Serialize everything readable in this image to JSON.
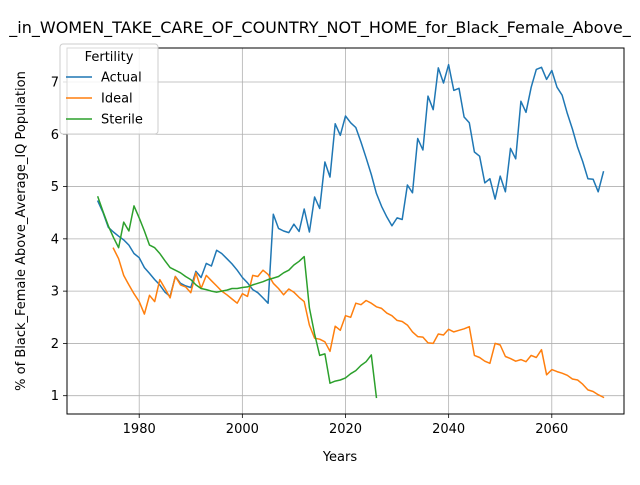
{
  "chart_data": {
    "type": "line",
    "title": "_in_WOMEN_TAKE_CARE_OF_COUNTRY_NOT_HOME_for_Black_Female_Above_",
    "xlabel": "Years",
    "ylabel": "% of Black_Female Above_Average_IQ Population",
    "xlim": [
      1966,
      2074
    ],
    "ylim": [
      0.65,
      7.65
    ],
    "xticks": [
      1980,
      2000,
      2020,
      2040,
      2060
    ],
    "yticks": [
      1,
      2,
      3,
      4,
      5,
      6,
      7
    ],
    "grid": true,
    "legend": {
      "title": "Fertility",
      "position": "upper-left"
    },
    "series": [
      {
        "name": "Actual",
        "color": "#1f77b4",
        "points": [
          [
            1972,
            4.72
          ],
          [
            1973,
            4.5
          ],
          [
            1974,
            4.22
          ],
          [
            1975,
            4.13
          ],
          [
            1976,
            4.05
          ],
          [
            1977,
            3.98
          ],
          [
            1978,
            3.88
          ],
          [
            1979,
            3.72
          ],
          [
            1980,
            3.64
          ],
          [
            1981,
            3.45
          ],
          [
            1982,
            3.34
          ],
          [
            1983,
            3.22
          ],
          [
            1984,
            3.12
          ],
          [
            1985,
            2.98
          ],
          [
            1986,
            2.9
          ],
          [
            1987,
            3.28
          ],
          [
            1988,
            3.15
          ],
          [
            1989,
            3.1
          ],
          [
            1990,
            3.07
          ],
          [
            1991,
            3.38
          ],
          [
            1992,
            3.26
          ],
          [
            1993,
            3.53
          ],
          [
            1994,
            3.48
          ],
          [
            1995,
            3.78
          ],
          [
            1996,
            3.72
          ],
          [
            1997,
            3.62
          ],
          [
            1998,
            3.52
          ],
          [
            1999,
            3.4
          ],
          [
            2000,
            3.26
          ],
          [
            2001,
            3.16
          ],
          [
            2002,
            3.03
          ],
          [
            2003,
            2.97
          ],
          [
            2004,
            2.87
          ],
          [
            2005,
            2.77
          ],
          [
            2006,
            4.47
          ],
          [
            2007,
            4.2
          ],
          [
            2008,
            4.15
          ],
          [
            2009,
            4.12
          ],
          [
            2010,
            4.28
          ],
          [
            2011,
            4.14
          ],
          [
            2012,
            4.57
          ],
          [
            2013,
            4.13
          ],
          [
            2014,
            4.8
          ],
          [
            2015,
            4.58
          ],
          [
            2016,
            5.47
          ],
          [
            2017,
            5.18
          ],
          [
            2018,
            6.2
          ],
          [
            2019,
            5.98
          ],
          [
            2020,
            6.35
          ],
          [
            2021,
            6.22
          ],
          [
            2022,
            6.13
          ],
          [
            2023,
            5.85
          ],
          [
            2024,
            5.55
          ],
          [
            2025,
            5.23
          ],
          [
            2026,
            4.87
          ],
          [
            2027,
            4.62
          ],
          [
            2028,
            4.42
          ],
          [
            2029,
            4.25
          ],
          [
            2030,
            4.4
          ],
          [
            2031,
            4.37
          ],
          [
            2032,
            5.03
          ],
          [
            2033,
            4.88
          ],
          [
            2034,
            5.92
          ],
          [
            2035,
            5.7
          ],
          [
            2036,
            6.73
          ],
          [
            2037,
            6.47
          ],
          [
            2038,
            7.27
          ],
          [
            2039,
            6.98
          ],
          [
            2040,
            7.33
          ],
          [
            2041,
            6.84
          ],
          [
            2042,
            6.88
          ],
          [
            2043,
            6.33
          ],
          [
            2044,
            6.22
          ],
          [
            2045,
            5.66
          ],
          [
            2046,
            5.58
          ],
          [
            2047,
            5.07
          ],
          [
            2048,
            5.15
          ],
          [
            2049,
            4.76
          ],
          [
            2050,
            5.2
          ],
          [
            2051,
            4.9
          ],
          [
            2052,
            5.73
          ],
          [
            2053,
            5.53
          ],
          [
            2054,
            6.63
          ],
          [
            2055,
            6.42
          ],
          [
            2056,
            6.9
          ],
          [
            2057,
            7.24
          ],
          [
            2058,
            7.28
          ],
          [
            2059,
            7.05
          ],
          [
            2060,
            7.22
          ],
          [
            2061,
            6.9
          ],
          [
            2062,
            6.75
          ],
          [
            2063,
            6.4
          ],
          [
            2064,
            6.1
          ],
          [
            2065,
            5.75
          ],
          [
            2066,
            5.48
          ],
          [
            2067,
            5.15
          ],
          [
            2068,
            5.14
          ],
          [
            2069,
            4.9
          ],
          [
            2070,
            5.28
          ]
        ]
      },
      {
        "name": "Ideal",
        "color": "#ff7f0e",
        "points": [
          [
            1975,
            3.82
          ],
          [
            1976,
            3.62
          ],
          [
            1977,
            3.3
          ],
          [
            1978,
            3.12
          ],
          [
            1979,
            2.95
          ],
          [
            1980,
            2.8
          ],
          [
            1981,
            2.56
          ],
          [
            1982,
            2.92
          ],
          [
            1983,
            2.8
          ],
          [
            1984,
            3.22
          ],
          [
            1985,
            3.05
          ],
          [
            1986,
            2.87
          ],
          [
            1987,
            3.28
          ],
          [
            1988,
            3.12
          ],
          [
            1989,
            3.08
          ],
          [
            1990,
            2.97
          ],
          [
            1991,
            3.35
          ],
          [
            1992,
            3.05
          ],
          [
            1993,
            3.3
          ],
          [
            1994,
            3.2
          ],
          [
            1995,
            3.1
          ],
          [
            1996,
            3.0
          ],
          [
            1997,
            2.93
          ],
          [
            1998,
            2.85
          ],
          [
            1999,
            2.77
          ],
          [
            2000,
            2.95
          ],
          [
            2001,
            2.9
          ],
          [
            2002,
            3.3
          ],
          [
            2003,
            3.28
          ],
          [
            2004,
            3.4
          ],
          [
            2005,
            3.32
          ],
          [
            2006,
            3.15
          ],
          [
            2007,
            3.05
          ],
          [
            2008,
            2.93
          ],
          [
            2009,
            3.04
          ],
          [
            2010,
            2.98
          ],
          [
            2011,
            2.88
          ],
          [
            2012,
            2.8
          ],
          [
            2013,
            2.35
          ],
          [
            2014,
            2.1
          ],
          [
            2015,
            2.08
          ],
          [
            2016,
            2.03
          ],
          [
            2017,
            1.85
          ],
          [
            2018,
            2.33
          ],
          [
            2019,
            2.25
          ],
          [
            2020,
            2.53
          ],
          [
            2021,
            2.5
          ],
          [
            2022,
            2.77
          ],
          [
            2023,
            2.74
          ],
          [
            2024,
            2.82
          ],
          [
            2025,
            2.77
          ],
          [
            2026,
            2.7
          ],
          [
            2027,
            2.67
          ],
          [
            2028,
            2.58
          ],
          [
            2029,
            2.53
          ],
          [
            2030,
            2.44
          ],
          [
            2031,
            2.42
          ],
          [
            2032,
            2.35
          ],
          [
            2033,
            2.22
          ],
          [
            2034,
            2.13
          ],
          [
            2035,
            2.12
          ],
          [
            2036,
            2.01
          ],
          [
            2037,
            2.0
          ],
          [
            2038,
            2.18
          ],
          [
            2039,
            2.16
          ],
          [
            2040,
            2.27
          ],
          [
            2041,
            2.22
          ],
          [
            2042,
            2.25
          ],
          [
            2043,
            2.28
          ],
          [
            2044,
            2.32
          ],
          [
            2045,
            1.77
          ],
          [
            2046,
            1.73
          ],
          [
            2047,
            1.66
          ],
          [
            2048,
            1.62
          ],
          [
            2049,
            2.0
          ],
          [
            2050,
            1.97
          ],
          [
            2051,
            1.75
          ],
          [
            2052,
            1.71
          ],
          [
            2053,
            1.66
          ],
          [
            2054,
            1.69
          ],
          [
            2055,
            1.65
          ],
          [
            2056,
            1.77
          ],
          [
            2057,
            1.73
          ],
          [
            2058,
            1.88
          ],
          [
            2059,
            1.4
          ],
          [
            2060,
            1.5
          ],
          [
            2061,
            1.46
          ],
          [
            2062,
            1.43
          ],
          [
            2063,
            1.39
          ],
          [
            2064,
            1.32
          ],
          [
            2065,
            1.3
          ],
          [
            2066,
            1.22
          ],
          [
            2067,
            1.11
          ],
          [
            2068,
            1.08
          ],
          [
            2069,
            1.02
          ],
          [
            2070,
            0.97
          ]
        ]
      },
      {
        "name": "Sterile",
        "color": "#2ca02c",
        "points": [
          [
            1972,
            4.8
          ],
          [
            1973,
            4.52
          ],
          [
            1974,
            4.25
          ],
          [
            1975,
            4.03
          ],
          [
            1976,
            3.83
          ],
          [
            1977,
            4.32
          ],
          [
            1978,
            4.15
          ],
          [
            1979,
            4.63
          ],
          [
            1980,
            4.4
          ],
          [
            1981,
            4.15
          ],
          [
            1982,
            3.88
          ],
          [
            1983,
            3.83
          ],
          [
            1984,
            3.72
          ],
          [
            1985,
            3.58
          ],
          [
            1986,
            3.45
          ],
          [
            1987,
            3.4
          ],
          [
            1988,
            3.35
          ],
          [
            1989,
            3.28
          ],
          [
            1990,
            3.22
          ],
          [
            1991,
            3.12
          ],
          [
            1992,
            3.05
          ],
          [
            1993,
            3.03
          ],
          [
            1994,
            3.0
          ],
          [
            1995,
            2.98
          ],
          [
            1996,
            3.0
          ],
          [
            1997,
            3.02
          ],
          [
            1998,
            3.05
          ],
          [
            1999,
            3.05
          ],
          [
            2000,
            3.07
          ],
          [
            2001,
            3.08
          ],
          [
            2002,
            3.12
          ],
          [
            2003,
            3.15
          ],
          [
            2004,
            3.18
          ],
          [
            2005,
            3.22
          ],
          [
            2006,
            3.25
          ],
          [
            2007,
            3.28
          ],
          [
            2008,
            3.35
          ],
          [
            2009,
            3.4
          ],
          [
            2010,
            3.5
          ],
          [
            2011,
            3.57
          ],
          [
            2012,
            3.66
          ],
          [
            2013,
            2.68
          ],
          [
            2014,
            2.18
          ],
          [
            2015,
            1.77
          ],
          [
            2016,
            1.8
          ],
          [
            2017,
            1.24
          ],
          [
            2018,
            1.28
          ],
          [
            2019,
            1.3
          ],
          [
            2020,
            1.34
          ],
          [
            2021,
            1.42
          ],
          [
            2022,
            1.48
          ],
          [
            2023,
            1.58
          ],
          [
            2024,
            1.65
          ],
          [
            2025,
            1.78
          ],
          [
            2026,
            0.97
          ]
        ]
      }
    ]
  }
}
